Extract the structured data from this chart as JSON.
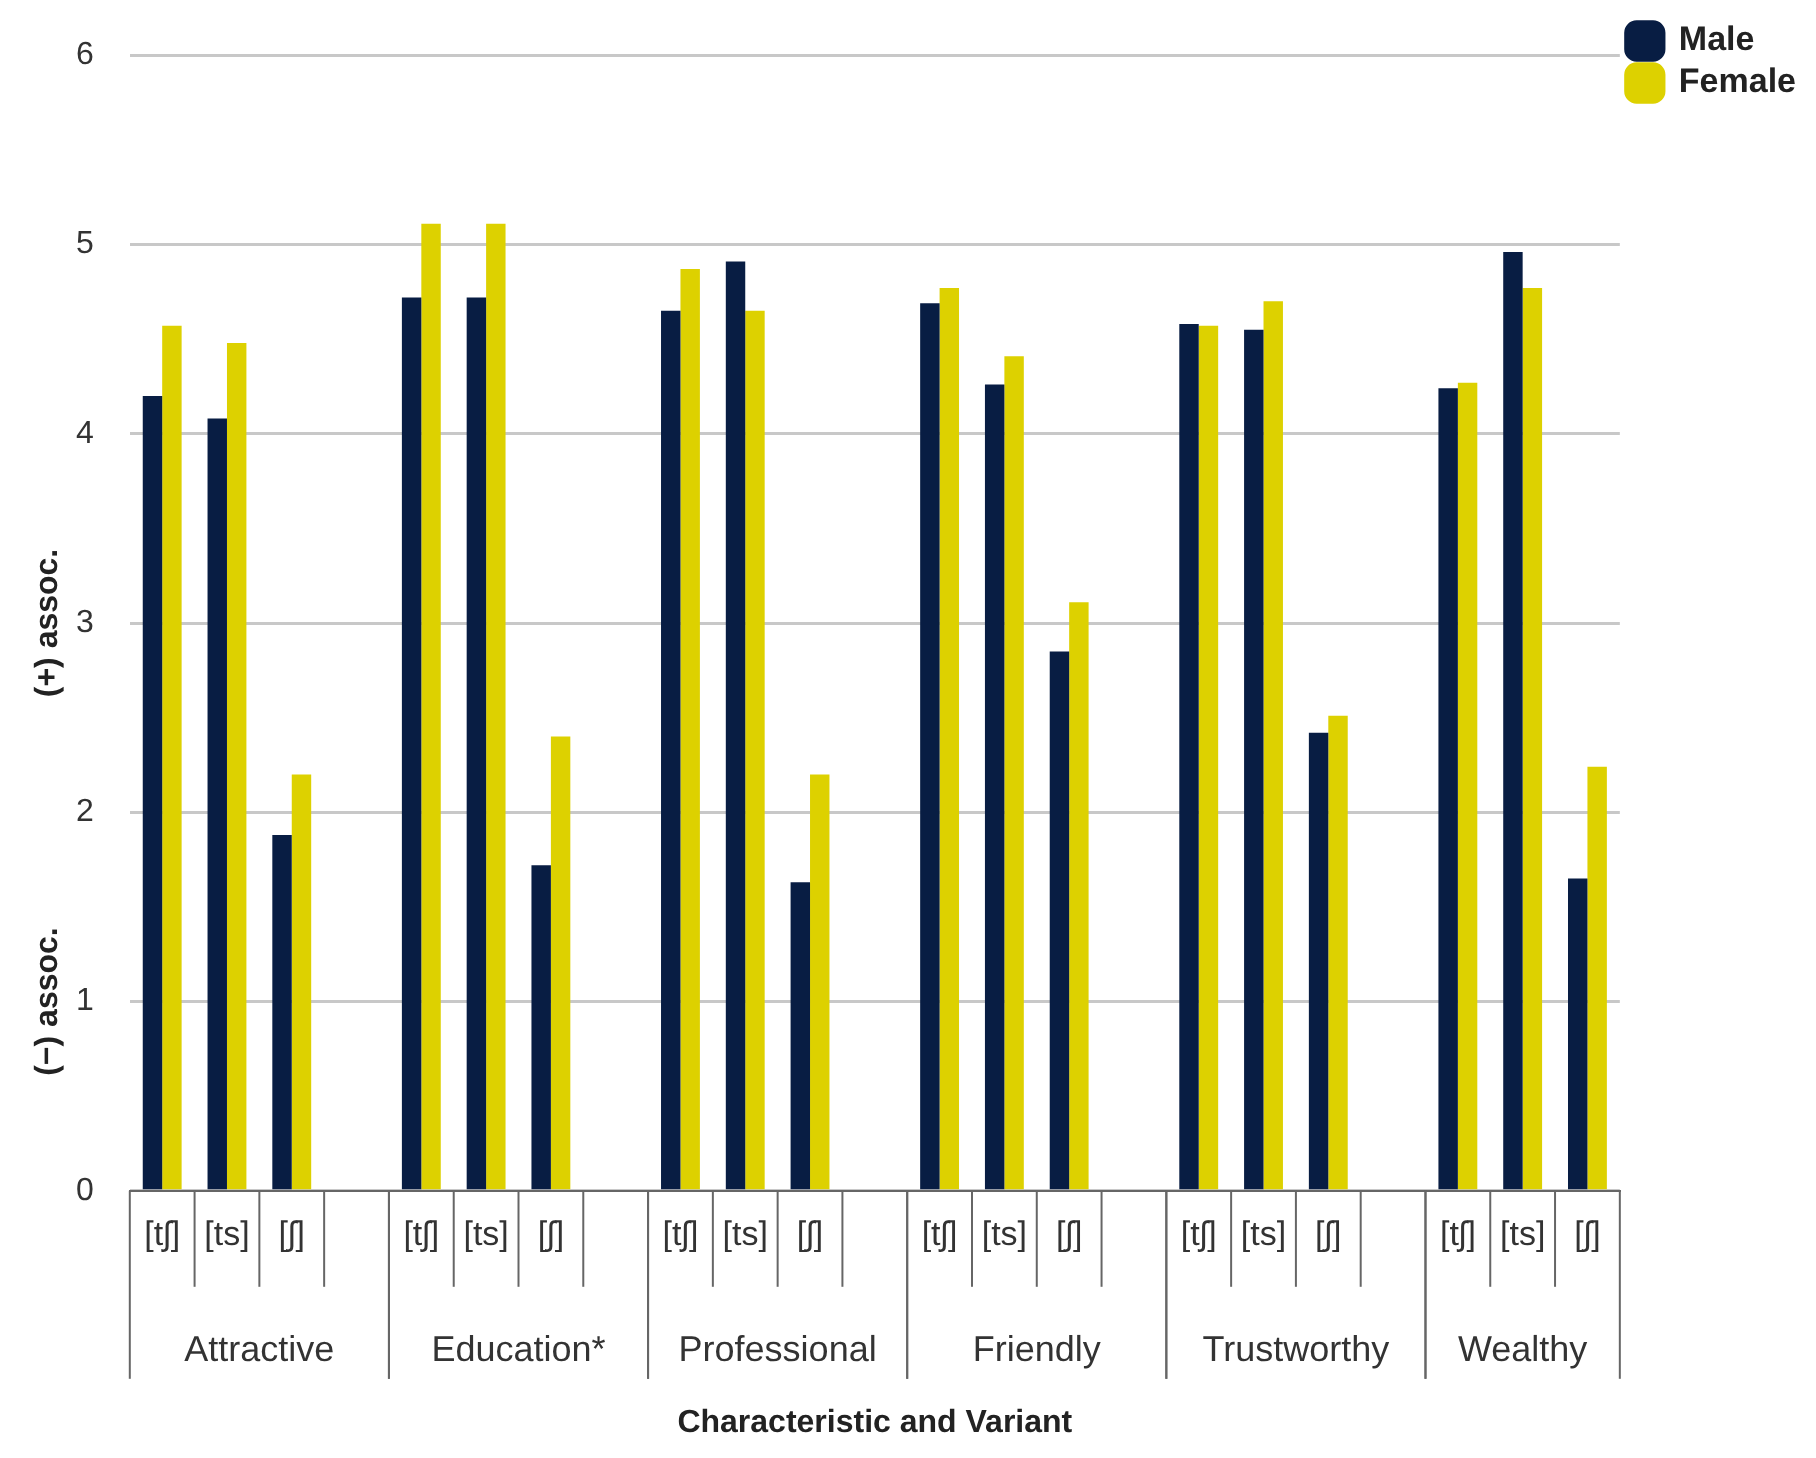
{
  "chart_data": {
    "type": "bar",
    "xlabel": "Characteristic and Variant",
    "ylabel": "(+) assoc.",
    "categories": [
      "[tʃ]",
      "[ts]",
      "[ʃ]",
      null,
      "[tʃ]",
      "[ts]",
      "[ʃ]",
      null,
      "[tʃ]",
      "[ts]",
      "[ʃ]",
      null,
      "[tʃ]",
      "[ts]",
      "[ʃ]",
      null,
      "[tʃ]",
      "[ts]",
      "[ʃ]",
      null,
      "[tʃ]",
      "[ts]",
      "[ʃ]"
    ],
    "series": [
      {
        "name": "Male",
        "color": "#081d43",
        "values": [
          4.2,
          4.08,
          1.88,
          null,
          4.72,
          4.72,
          1.72,
          null,
          4.65,
          4.91,
          1.63,
          null,
          4.69,
          4.26,
          2.85,
          null,
          4.58,
          4.55,
          2.42,
          null,
          4.24,
          4.96,
          1.65
        ]
      },
      {
        "name": "Female",
        "color": "#ddd100",
        "values": [
          4.57,
          4.48,
          2.2,
          null,
          5.11,
          5.11,
          2.4,
          null,
          4.87,
          4.65,
          2.2,
          null,
          4.77,
          4.41,
          3.11,
          null,
          4.57,
          4.7,
          2.51,
          null,
          4.27,
          4.77,
          2.24
        ]
      }
    ],
    "annotations": [
      "(−) assoc.",
      "Attractive",
      "Education*",
      "Professional",
      "Friendly",
      "Trustworthy",
      "Wealthy"
    ],
    "ylim": [
      0,
      6
    ],
    "yticks": [
      0,
      1,
      2,
      3,
      4,
      5,
      6
    ],
    "grid": "y",
    "legend": "top right"
  }
}
